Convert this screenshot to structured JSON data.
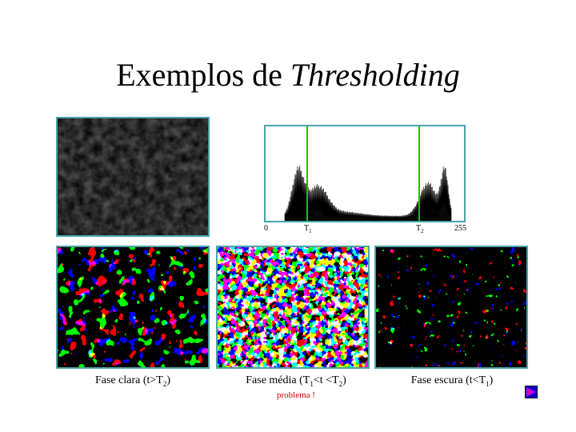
{
  "title": {
    "main": "Exemplos de ",
    "emph": "Thresholding"
  },
  "histogram": {
    "ticks": {
      "zero": "0",
      "t1": "T",
      "t1_sub": "1",
      "t2": "T",
      "t2_sub": "2",
      "max": "255"
    },
    "colors": {
      "line": "#00cc00",
      "frame": "#4aa3a8"
    }
  },
  "captions": {
    "light": {
      "pre": "Fase clara (t>T",
      "sub": "2",
      "post": ")"
    },
    "mid": {
      "pre": "Fase média (T",
      "sub1": "1",
      "mid": "<t <T",
      "sub2": "2",
      "post": ")"
    },
    "dark": {
      "pre": "Fase escura (t<T",
      "sub": "1",
      "post": ")"
    }
  },
  "problem_note": "problema !",
  "nav": {
    "icon": "play-triangle-icon",
    "color": "#0000cc",
    "accent": "#cc00cc"
  }
}
